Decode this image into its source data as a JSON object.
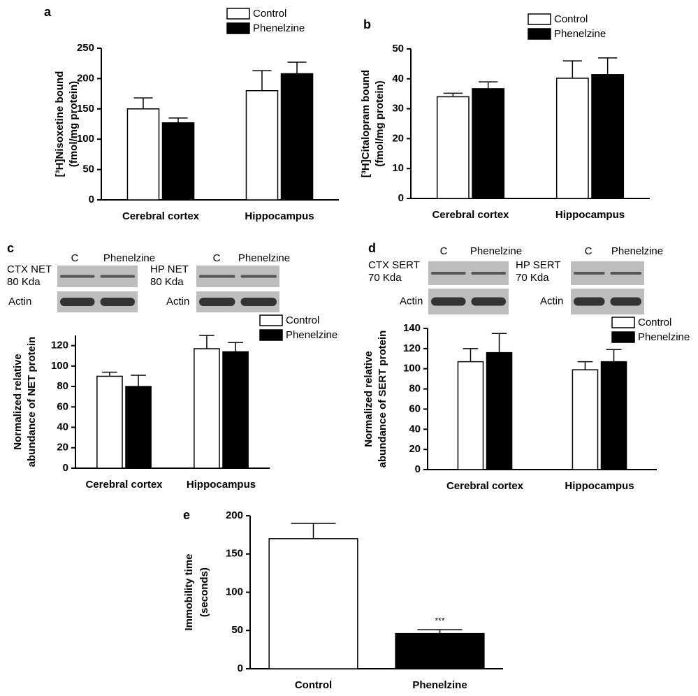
{
  "chart_data": [
    {
      "type": "bar",
      "label": "a",
      "y_label": [
        "[³H]Nisoxetine bound",
        "(fmol/mg protein)"
      ],
      "categories": [
        "Cerebral cortex",
        "Hippocampus"
      ],
      "series": [
        {
          "name": "Control",
          "color": "#ffffff",
          "values": [
            150,
            180
          ],
          "errors": [
            18,
            33
          ]
        },
        {
          "name": "Phenelzine",
          "color": "#000000",
          "values": [
            127,
            208
          ],
          "errors": [
            8,
            19
          ]
        }
      ],
      "ylim": [
        0,
        250
      ],
      "yticks": [
        0,
        50,
        100,
        150,
        200,
        250
      ]
    },
    {
      "type": "bar",
      "label": "b",
      "y_label": [
        "[³H]Citalopram bound",
        "(fmol/mg protein)"
      ],
      "categories": [
        "Cerebral cortex",
        "Hippocampus"
      ],
      "series": [
        {
          "name": "Control",
          "color": "#ffffff",
          "values": [
            34,
            40.2
          ],
          "errors": [
            1.2,
            5.8
          ]
        },
        {
          "name": "Phenelzine",
          "color": "#000000",
          "values": [
            36.7,
            41.4
          ],
          "errors": [
            2.3,
            5.6
          ]
        }
      ],
      "ylim": [
        0,
        50
      ],
      "yticks": [
        0,
        10,
        20,
        30,
        40,
        50
      ]
    },
    {
      "type": "bar",
      "label": "c",
      "y_label": [
        "Normalized relative",
        "abundance of NET protein"
      ],
      "categories": [
        "Cerebral cortex",
        "Hippocampus"
      ],
      "series": [
        {
          "name": "Control",
          "color": "#ffffff",
          "values": [
            90,
            117
          ],
          "errors": [
            4,
            13
          ]
        },
        {
          "name": "Phenelzine",
          "color": "#000000",
          "values": [
            80,
            114
          ],
          "errors": [
            11,
            9
          ]
        }
      ],
      "ylim": [
        0,
        130
      ],
      "yticks": [
        0,
        20,
        40,
        60,
        80,
        100,
        120
      ],
      "blots": [
        {
          "lanes": [
            "C",
            "Phenelzine"
          ],
          "protein": [
            "CTX NET",
            "80 Kda"
          ],
          "loading": "Actin"
        },
        {
          "lanes": [
            "C",
            "Phenelzine"
          ],
          "protein": [
            "HP NET",
            "80 Kda"
          ],
          "loading": "Actin"
        }
      ]
    },
    {
      "type": "bar",
      "label": "d",
      "y_label": [
        "Normalized relative",
        "abundance of SERT protein"
      ],
      "categories": [
        "Cerebral cortex",
        "Hippocampus"
      ],
      "series": [
        {
          "name": "Control",
          "color": "#ffffff",
          "values": [
            107,
            99
          ],
          "errors": [
            13,
            8
          ]
        },
        {
          "name": "Phenelzine",
          "color": "#000000",
          "values": [
            116,
            107
          ],
          "errors": [
            19,
            12
          ]
        }
      ],
      "ylim": [
        0,
        140
      ],
      "yticks": [
        0,
        20,
        40,
        60,
        80,
        100,
        120,
        140
      ],
      "blots": [
        {
          "lanes": [
            "C",
            "Phenelzine"
          ],
          "protein": [
            "CTX SERT",
            "70 Kda"
          ],
          "loading": "Actin"
        },
        {
          "lanes": [
            "C",
            "Phenelzine"
          ],
          "protein": [
            "HP SERT",
            "70 Kda"
          ],
          "loading": "Actin"
        }
      ]
    },
    {
      "type": "bar",
      "label": "e",
      "y_label": [
        "Immobility time",
        "(seconds)"
      ],
      "categories": [
        "Control",
        "Phenelzine"
      ],
      "series": [
        {
          "values": [
            170,
            46
          ],
          "errors": [
            20,
            5
          ],
          "colors": [
            "#ffffff",
            "#000000"
          ]
        }
      ],
      "annotation": "***",
      "ylim": [
        0,
        200
      ],
      "yticks": [
        0,
        50,
        100,
        150,
        200
      ]
    }
  ]
}
